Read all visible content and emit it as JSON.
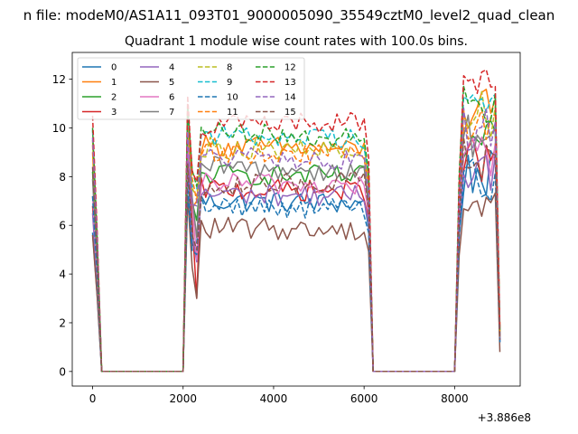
{
  "chart_data": {
    "type": "line",
    "suptitle": "n file: modeM0/AS1A11_093T01_9000005090_35549cztM0_level2_quad_clean",
    "title": "Quadrant 1 module wise count rates with 100.0s bins.",
    "xlabel": "",
    "ylabel": "",
    "x_offset_label": "+3.886e8",
    "xlim": [
      -450,
      9450
    ],
    "ylim": [
      -0.6,
      13.1
    ],
    "xticks": [
      0,
      2000,
      4000,
      6000,
      8000
    ],
    "xtick_labels": [
      "0",
      "2000",
      "4000",
      "6000",
      "8000"
    ],
    "yticks": [
      0,
      2,
      4,
      6,
      8,
      10,
      12
    ],
    "ytick_labels": [
      "0",
      "2",
      "4",
      "6",
      "8",
      "10",
      "12"
    ],
    "grid": false,
    "legend_position": "top-left",
    "legend_columns": 4,
    "x_start": 0,
    "x_step": 100,
    "series": [
      {
        "name": "0",
        "color": "#1f77b4",
        "dash": "solid",
        "level": [
          7.0,
          6.9
        ],
        "start": 5.7,
        "end": 1.2,
        "dip": 5.3
      },
      {
        "name": "1",
        "color": "#ff7f0e",
        "dash": "solid",
        "level": [
          9.3,
          9.1
        ],
        "start": 9.0,
        "end": 1.8,
        "dip": 7.0
      },
      {
        "name": "2",
        "color": "#2ca02c",
        "dash": "solid",
        "level": [
          8.1,
          8.0
        ],
        "start": 8.2,
        "end": 1.5,
        "dip": 6.2
      },
      {
        "name": "3",
        "color": "#d62728",
        "dash": "solid",
        "level": [
          7.5,
          7.4
        ],
        "start": 6.8,
        "end": 1.3,
        "dip": 3.0
      },
      {
        "name": "4",
        "color": "#9467bd",
        "dash": "solid",
        "level": [
          7.3,
          7.2
        ],
        "start": 6.5,
        "end": 1.2,
        "dip": 4.5
      },
      {
        "name": "5",
        "color": "#8c564b",
        "dash": "solid",
        "level": [
          5.9,
          5.8
        ],
        "start": 5.6,
        "end": 0.8,
        "dip": 3.0
      },
      {
        "name": "6",
        "color": "#e377c2",
        "dash": "solid",
        "level": [
          7.8,
          7.6
        ],
        "start": 7.2,
        "end": 1.3,
        "dip": 4.6
      },
      {
        "name": "7",
        "color": "#7f7f7f",
        "dash": "solid",
        "level": [
          8.4,
          8.2
        ],
        "start": 7.9,
        "end": 1.4,
        "dip": 5.5
      },
      {
        "name": "8",
        "color": "#bcbd22",
        "dash": "dashed",
        "level": [
          9.2,
          9.0
        ],
        "start": 9.5,
        "end": 1.6,
        "dip": 7.2
      },
      {
        "name": "9",
        "color": "#17becf",
        "dash": "dashed",
        "level": [
          9.7,
          9.6
        ],
        "start": 9.9,
        "end": 1.6,
        "dip": 7.5
      },
      {
        "name": "10",
        "color": "#1f77b4",
        "dash": "dashed",
        "level": [
          6.8,
          6.7
        ],
        "start": 7.2,
        "end": 1.2,
        "dip": 4.8
      },
      {
        "name": "11",
        "color": "#ff7f0e",
        "dash": "dashed",
        "level": [
          9.0,
          8.9
        ],
        "start": 9.3,
        "end": 1.6,
        "dip": 7.0
      },
      {
        "name": "12",
        "color": "#2ca02c",
        "dash": "dashed",
        "level": [
          9.8,
          9.6
        ],
        "start": 10.0,
        "end": 1.7,
        "dip": 7.6
      },
      {
        "name": "13",
        "color": "#d62728",
        "dash": "dashed",
        "level": [
          10.1,
          10.3
        ],
        "start": 10.5,
        "end": 1.8,
        "dip": 7.8
      },
      {
        "name": "14",
        "color": "#9467bd",
        "dash": "dashed",
        "level": [
          8.8,
          8.6
        ],
        "start": 9.6,
        "end": 1.5,
        "dip": 6.8
      },
      {
        "name": "15",
        "color": "#8c564b",
        "dash": "dashed",
        "level": [
          7.6,
          7.8
        ],
        "start": 8.4,
        "end": 1.3,
        "dip": 5.0
      }
    ]
  }
}
